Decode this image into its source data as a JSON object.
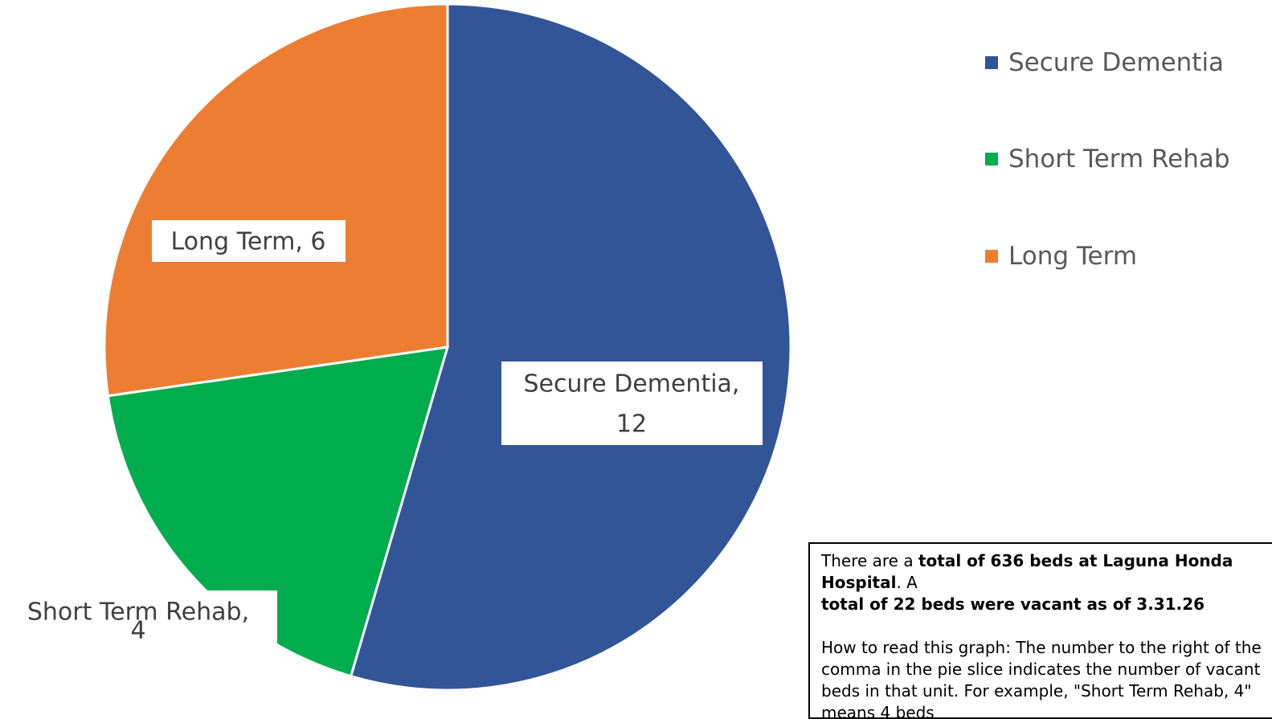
{
  "chart_data": {
    "type": "pie",
    "title": "",
    "slices": [
      {
        "label": "Secure Dementia",
        "value": 12,
        "color": "#325597",
        "data_label_line1": "Secure Dementia,",
        "data_label_line2": "12"
      },
      {
        "label": "Short Term Rehab",
        "value": 4,
        "color": "#00AD4E",
        "data_label_line1": "Short Term Rehab,",
        "data_label_line2": "4"
      },
      {
        "label": "Long Term",
        "value": 6,
        "color": "#ED7D31",
        "data_label_line1": "Long Term, 6",
        "data_label_line2": ""
      }
    ],
    "legend": {
      "placement": "top-right",
      "entries": [
        "Secure Dementia",
        "Short Term Rehab",
        "Long Term"
      ]
    }
  },
  "note": {
    "line1_plain": "There are a ",
    "line1_bold": "total of 636 beds at Laguna Honda Hospital",
    "line1_rest": ". A",
    "line2_bold": "total of 22  beds were vacant as of 3.31.26",
    "para2": "How to read this graph: The number to the right of the comma in the pie slice indicates the number of vacant beds in that unit. For example, \"Short Term Rehab, 4\" means 4 beds"
  }
}
